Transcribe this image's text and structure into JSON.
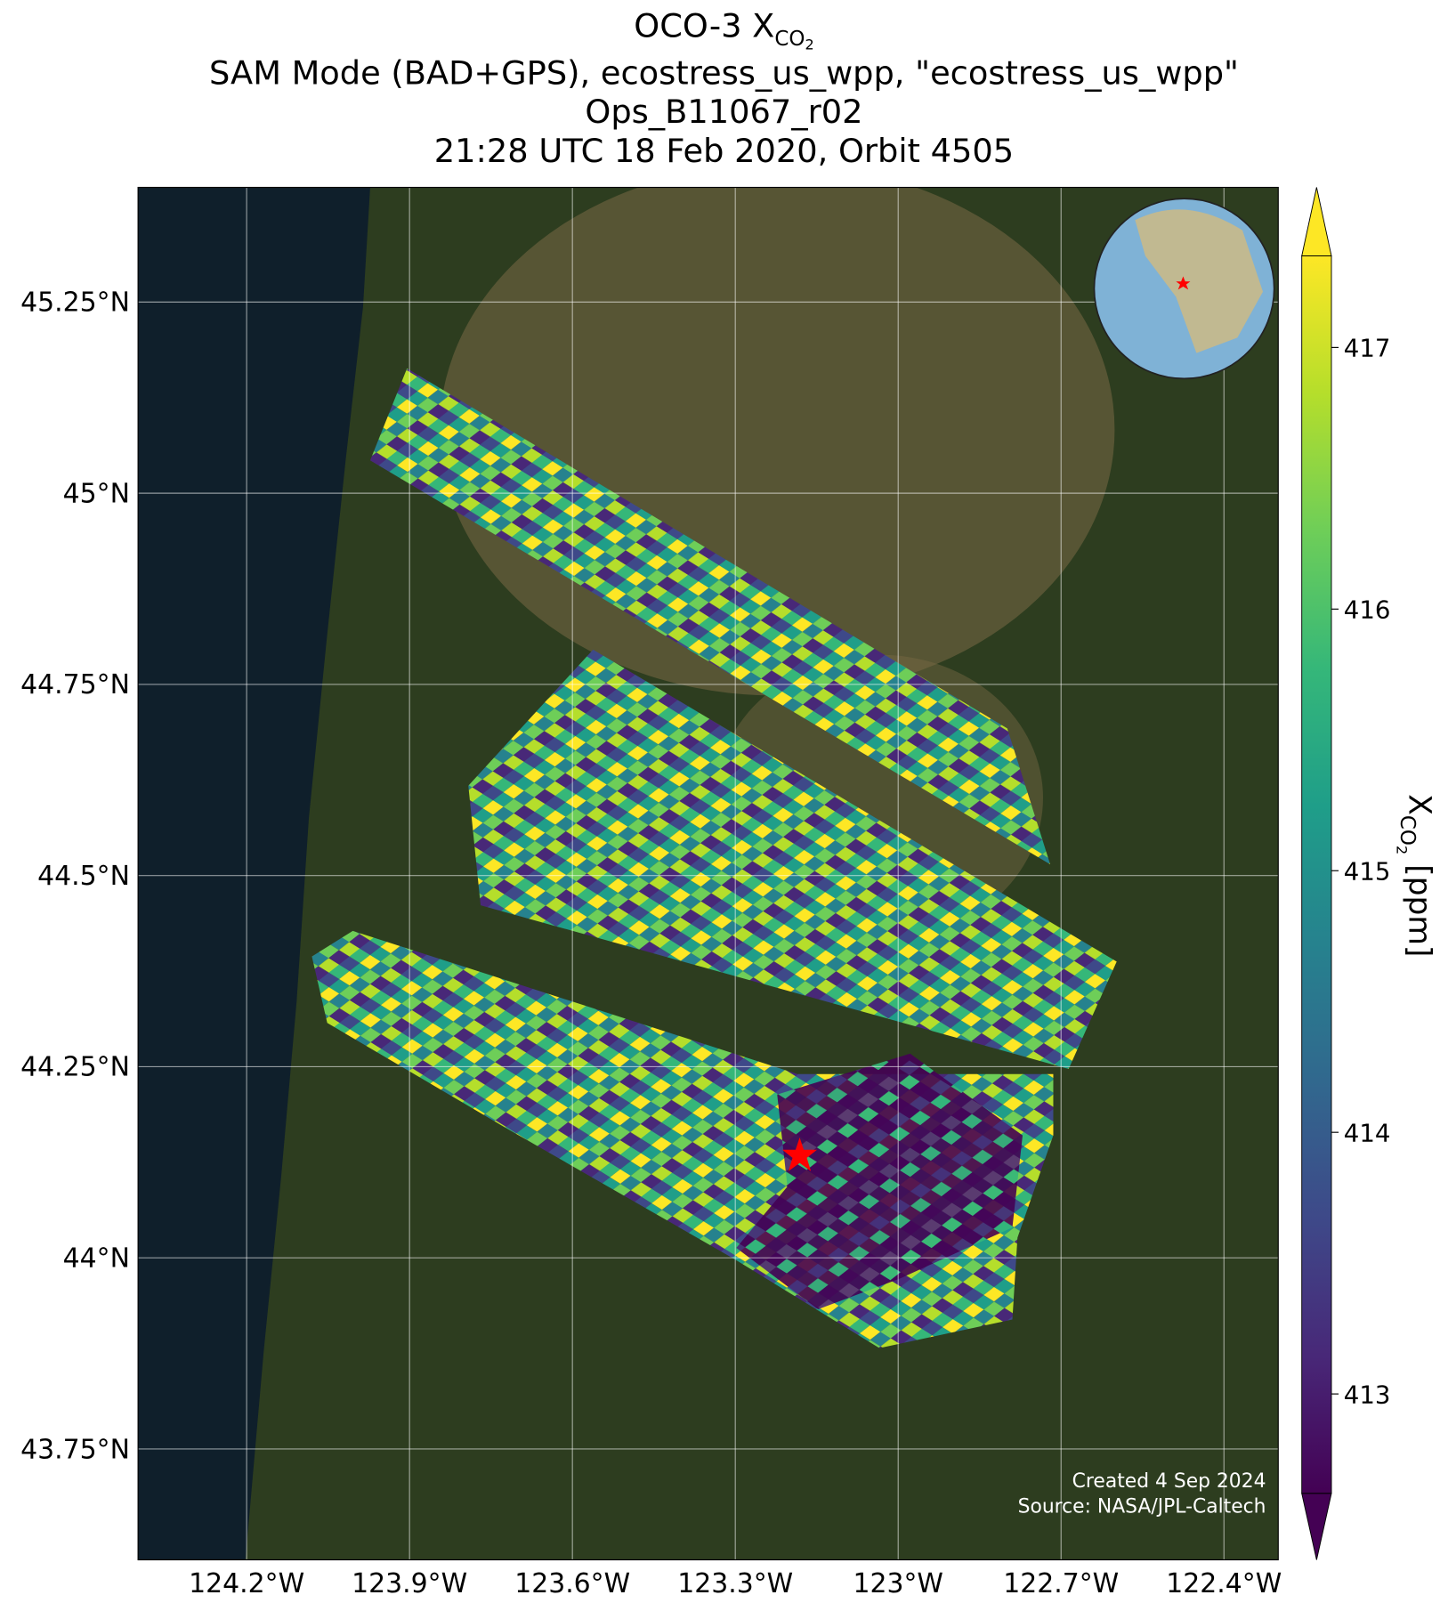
{
  "chart_data": {
    "type": "map",
    "title": {
      "text": "OCO-3 X",
      "sub": "CO",
      "subsub": "2"
    },
    "subtitle_lines": [
      "SAM Mode (BAD+GPS), ecostress_us_wpp, \"ecostress_us_wpp\"",
      "Ops_B11067_r02",
      "21:28 UTC 18 Feb 2020, Orbit 4505"
    ],
    "xlim": [
      -124.4,
      -122.3
    ],
    "ylim": [
      43.605,
      45.4
    ],
    "xticks": [
      {
        "value": -124.2,
        "label": "124.2°W"
      },
      {
        "value": -123.9,
        "label": "123.9°W"
      },
      {
        "value": -123.6,
        "label": "123.6°W"
      },
      {
        "value": -123.3,
        "label": "123.3°W"
      },
      {
        "value": -123.0,
        "label": "123°W"
      },
      {
        "value": -122.7,
        "label": "122.7°W"
      },
      {
        "value": -122.4,
        "label": "122.4°W"
      }
    ],
    "yticks": [
      {
        "value": 45.25,
        "label": "45.25°N"
      },
      {
        "value": 45.0,
        "label": "45°N"
      },
      {
        "value": 44.75,
        "label": "44.75°N"
      },
      {
        "value": 44.5,
        "label": "44.5°N"
      },
      {
        "value": 44.25,
        "label": "44.25°N"
      },
      {
        "value": 44.0,
        "label": "44°N"
      },
      {
        "value": 43.75,
        "label": "43.75°N"
      }
    ],
    "grid": true,
    "colorbar": {
      "label": {
        "text": "X",
        "sub": "CO",
        "subsub": "2",
        "unit": " [ppm]"
      },
      "clim": [
        412.62,
        417.35
      ],
      "ticks": [
        413,
        414,
        415,
        416,
        417
      ],
      "colormap": [
        "#440154",
        "#482878",
        "#3e4989",
        "#31688e",
        "#26828e",
        "#1f9e89",
        "#35b779",
        "#6ece58",
        "#b5de2b",
        "#fde725"
      ]
    },
    "credits": [
      "Created 4 Sep 2024",
      "Source: NASA/JPL-Caltech"
    ]
  }
}
